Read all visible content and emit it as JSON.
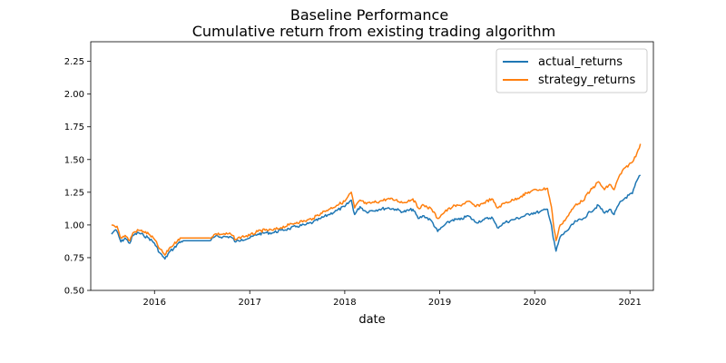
{
  "chart_data": {
    "type": "line",
    "title": "Baseline Performance",
    "subtitle": "Cumulative return from existing trading algorithm",
    "xlabel": "date",
    "ylabel": "",
    "ylim": [
      0.5,
      2.4
    ],
    "xlim": [
      "2015-05-01",
      "2021-04-01"
    ],
    "x_ticks": [
      "2016",
      "2017",
      "2018",
      "2019",
      "2020",
      "2021"
    ],
    "y_ticks": [
      "0.50",
      "0.75",
      "1.00",
      "1.25",
      "1.50",
      "1.75",
      "2.00",
      "2.25"
    ],
    "grid": false,
    "legend": {
      "position": "top-right"
    },
    "series": [
      {
        "name": "actual_returns",
        "color": "#1f77b4",
        "points": [
          [
            "2015-07-20",
            0.93
          ],
          [
            "2015-08-01",
            0.96
          ],
          [
            "2015-08-10",
            0.95
          ],
          [
            "2015-08-25",
            0.87
          ],
          [
            "2015-09-10",
            0.9
          ],
          [
            "2015-09-28",
            0.86
          ],
          [
            "2015-10-10",
            0.92
          ],
          [
            "2015-11-01",
            0.94
          ],
          [
            "2015-11-20",
            0.92
          ],
          [
            "2015-12-10",
            0.9
          ],
          [
            "2016-01-01",
            0.86
          ],
          [
            "2016-01-20",
            0.79
          ],
          [
            "2016-02-10",
            0.74
          ],
          [
            "2016-03-01",
            0.8
          ],
          [
            "2016-03-15",
            0.82
          ],
          [
            "2016-04-01",
            0.86
          ],
          [
            "2016-04-20",
            0.88
          ],
          [
            "2016-08-01",
            0.88
          ],
          [
            "2016-08-20",
            0.91
          ],
          [
            "2016-09-20",
            0.91
          ],
          [
            "2016-10-20",
            0.91
          ],
          [
            "2016-11-08",
            0.87
          ],
          [
            "2016-12-01",
            0.89
          ],
          [
            "2017-01-01",
            0.9
          ],
          [
            "2017-02-01",
            0.93
          ],
          [
            "2017-03-01",
            0.94
          ],
          [
            "2017-04-01",
            0.94
          ],
          [
            "2017-05-01",
            0.96
          ],
          [
            "2017-06-01",
            0.97
          ],
          [
            "2017-07-01",
            0.99
          ],
          [
            "2017-08-01",
            1.0
          ],
          [
            "2017-09-01",
            1.02
          ],
          [
            "2017-10-01",
            1.05
          ],
          [
            "2017-11-01",
            1.08
          ],
          [
            "2017-12-01",
            1.11
          ],
          [
            "2018-01-01",
            1.14
          ],
          [
            "2018-01-26",
            1.19
          ],
          [
            "2018-02-08",
            1.08
          ],
          [
            "2018-03-01",
            1.14
          ],
          [
            "2018-03-25",
            1.1
          ],
          [
            "2018-04-15",
            1.11
          ],
          [
            "2018-05-15",
            1.12
          ],
          [
            "2018-06-15",
            1.13
          ],
          [
            "2018-07-15",
            1.12
          ],
          [
            "2018-08-15",
            1.1
          ],
          [
            "2018-09-20",
            1.12
          ],
          [
            "2018-10-10",
            1.05
          ],
          [
            "2018-11-01",
            1.07
          ],
          [
            "2018-12-01",
            1.03
          ],
          [
            "2018-12-24",
            0.95
          ],
          [
            "2019-01-20",
            1.0
          ],
          [
            "2019-02-20",
            1.04
          ],
          [
            "2019-03-20",
            1.04
          ],
          [
            "2019-04-20",
            1.07
          ],
          [
            "2019-05-20",
            1.02
          ],
          [
            "2019-06-20",
            1.04
          ],
          [
            "2019-07-20",
            1.06
          ],
          [
            "2019-08-10",
            0.98
          ],
          [
            "2019-09-10",
            1.02
          ],
          [
            "2019-10-10",
            1.04
          ],
          [
            "2019-11-10",
            1.06
          ],
          [
            "2019-12-20",
            1.09
          ],
          [
            "2020-01-20",
            1.1
          ],
          [
            "2020-02-19",
            1.12
          ],
          [
            "2020-03-05",
            1.0
          ],
          [
            "2020-03-12",
            0.9
          ],
          [
            "2020-03-23",
            0.8
          ],
          [
            "2020-04-08",
            0.91
          ],
          [
            "2020-05-01",
            0.95
          ],
          [
            "2020-06-08",
            1.03
          ],
          [
            "2020-07-01",
            1.04
          ],
          [
            "2020-08-01",
            1.1
          ],
          [
            "2020-09-02",
            1.15
          ],
          [
            "2020-09-25",
            1.09
          ],
          [
            "2020-10-15",
            1.12
          ],
          [
            "2020-11-01",
            1.08
          ],
          [
            "2020-11-20",
            1.16
          ],
          [
            "2020-12-15",
            1.21
          ],
          [
            "2021-01-10",
            1.24
          ],
          [
            "2021-01-28",
            1.34
          ],
          [
            "2021-02-10",
            1.38
          ]
        ]
      },
      {
        "name": "strategy_returns",
        "color": "#ff7f0e",
        "points": [
          [
            "2015-07-20",
            1.0
          ],
          [
            "2015-08-01",
            0.99
          ],
          [
            "2015-08-10",
            0.99
          ],
          [
            "2015-08-25",
            0.9
          ],
          [
            "2015-09-10",
            0.92
          ],
          [
            "2015-09-28",
            0.88
          ],
          [
            "2015-10-10",
            0.94
          ],
          [
            "2015-11-01",
            0.96
          ],
          [
            "2015-11-20",
            0.95
          ],
          [
            "2015-12-10",
            0.93
          ],
          [
            "2016-01-01",
            0.89
          ],
          [
            "2016-01-20",
            0.82
          ],
          [
            "2016-02-10",
            0.77
          ],
          [
            "2016-03-01",
            0.83
          ],
          [
            "2016-03-15",
            0.85
          ],
          [
            "2016-04-01",
            0.89
          ],
          [
            "2016-04-20",
            0.9
          ],
          [
            "2016-08-01",
            0.9
          ],
          [
            "2016-08-20",
            0.93
          ],
          [
            "2016-09-20",
            0.93
          ],
          [
            "2016-10-20",
            0.93
          ],
          [
            "2016-11-08",
            0.89
          ],
          [
            "2016-12-01",
            0.91
          ],
          [
            "2017-01-01",
            0.92
          ],
          [
            "2017-02-01",
            0.95
          ],
          [
            "2017-03-01",
            0.96
          ],
          [
            "2017-04-01",
            0.96
          ],
          [
            "2017-05-01",
            0.98
          ],
          [
            "2017-06-01",
            1.0
          ],
          [
            "2017-07-01",
            1.02
          ],
          [
            "2017-08-01",
            1.03
          ],
          [
            "2017-09-01",
            1.05
          ],
          [
            "2017-10-01",
            1.09
          ],
          [
            "2017-11-01",
            1.12
          ],
          [
            "2017-12-01",
            1.15
          ],
          [
            "2018-01-01",
            1.18
          ],
          [
            "2018-01-26",
            1.25
          ],
          [
            "2018-02-08",
            1.13
          ],
          [
            "2018-03-01",
            1.19
          ],
          [
            "2018-03-25",
            1.16
          ],
          [
            "2018-04-15",
            1.17
          ],
          [
            "2018-05-15",
            1.18
          ],
          [
            "2018-06-15",
            1.2
          ],
          [
            "2018-07-15",
            1.19
          ],
          [
            "2018-08-15",
            1.17
          ],
          [
            "2018-09-20",
            1.2
          ],
          [
            "2018-10-10",
            1.13
          ],
          [
            "2018-11-01",
            1.15
          ],
          [
            "2018-12-01",
            1.12
          ],
          [
            "2018-12-24",
            1.05
          ],
          [
            "2019-01-20",
            1.1
          ],
          [
            "2019-02-20",
            1.14
          ],
          [
            "2019-03-20",
            1.15
          ],
          [
            "2019-04-20",
            1.18
          ],
          [
            "2019-05-20",
            1.14
          ],
          [
            "2019-06-20",
            1.17
          ],
          [
            "2019-07-20",
            1.2
          ],
          [
            "2019-08-10",
            1.13
          ],
          [
            "2019-09-10",
            1.17
          ],
          [
            "2019-10-10",
            1.19
          ],
          [
            "2019-11-10",
            1.22
          ],
          [
            "2019-12-20",
            1.26
          ],
          [
            "2020-01-20",
            1.27
          ],
          [
            "2020-02-19",
            1.28
          ],
          [
            "2020-03-05",
            1.14
          ],
          [
            "2020-03-12",
            1.02
          ],
          [
            "2020-03-23",
            0.88
          ],
          [
            "2020-04-08",
            1.0
          ],
          [
            "2020-05-01",
            1.05
          ],
          [
            "2020-06-08",
            1.16
          ],
          [
            "2020-07-01",
            1.18
          ],
          [
            "2020-08-01",
            1.26
          ],
          [
            "2020-09-02",
            1.33
          ],
          [
            "2020-09-25",
            1.27
          ],
          [
            "2020-10-15",
            1.31
          ],
          [
            "2020-11-01",
            1.27
          ],
          [
            "2020-11-20",
            1.37
          ],
          [
            "2020-12-15",
            1.44
          ],
          [
            "2021-01-10",
            1.48
          ],
          [
            "2021-01-28",
            1.55
          ],
          [
            "2021-02-10",
            1.62
          ]
        ]
      }
    ]
  }
}
